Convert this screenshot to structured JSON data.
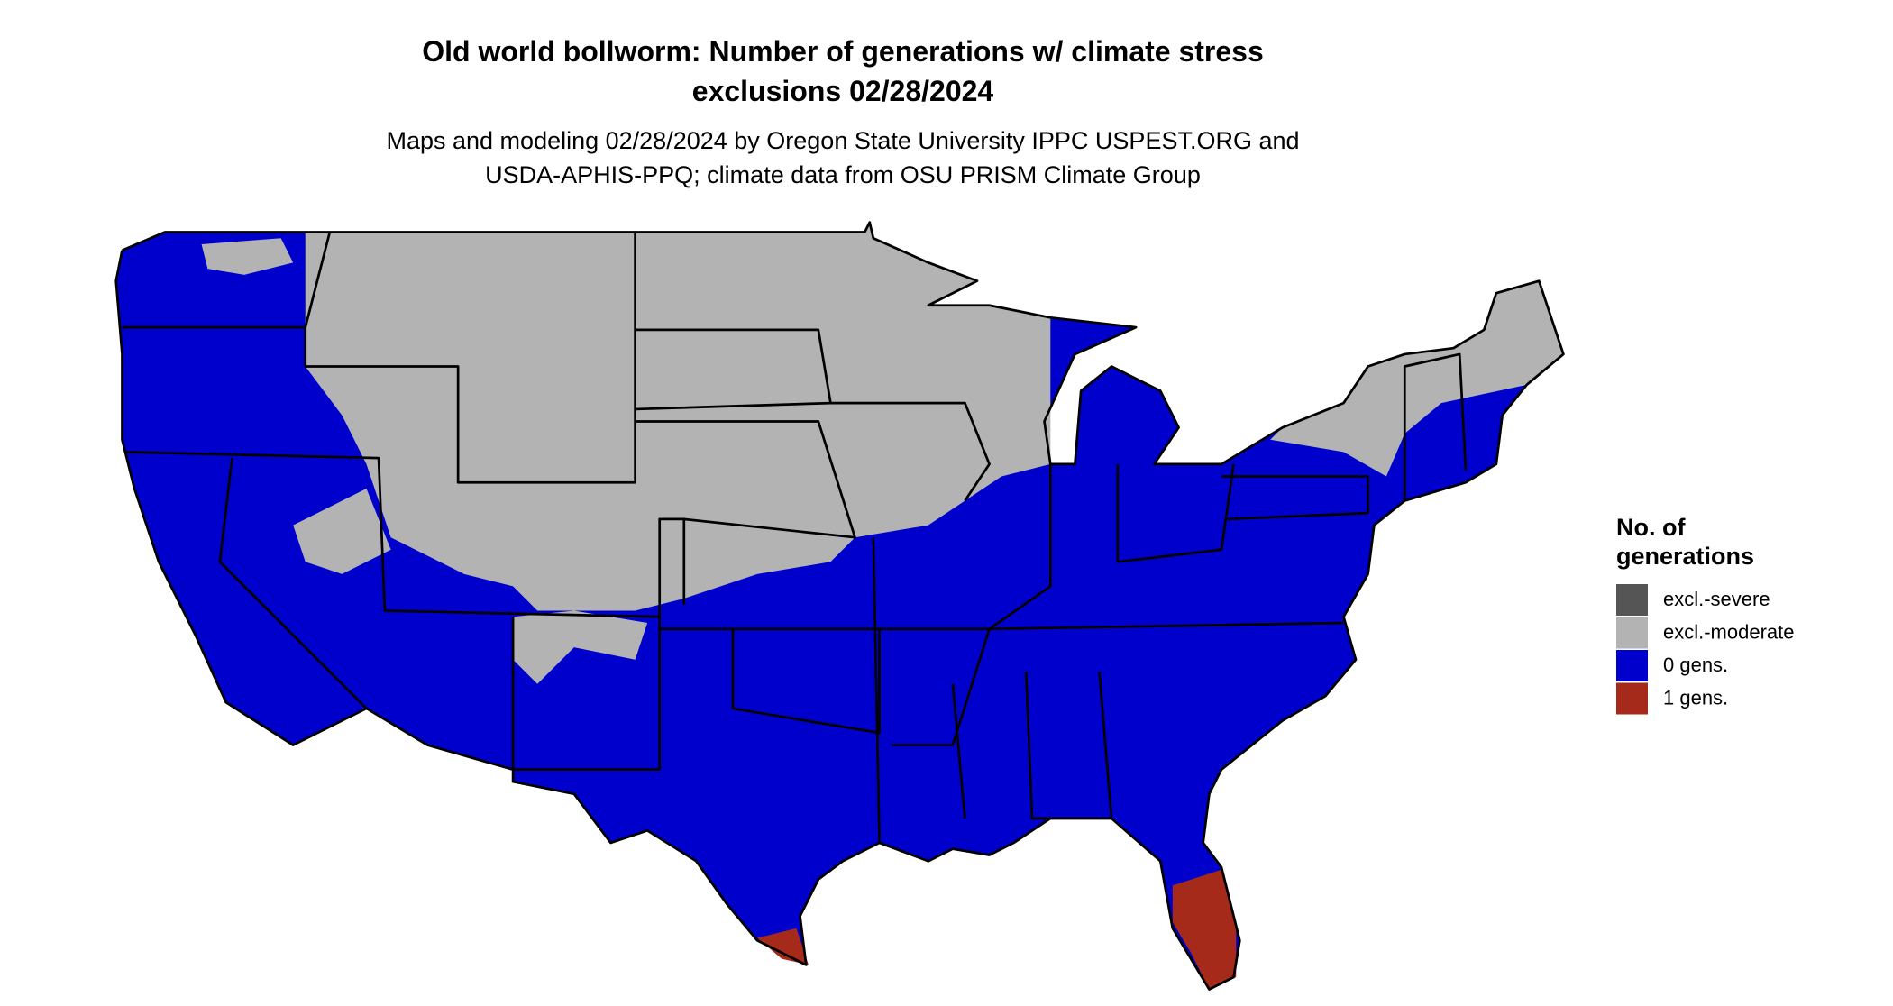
{
  "header": {
    "title": [
      "Old world bollworm: Number of generations w/ climate stress",
      "exclusions 02/28/2024"
    ],
    "subtitle": [
      "Maps and modeling 02/28/2024 by Oregon State University IPPC USPEST.ORG and",
      "USDA-APHIS-PPQ; climate data from OSU PRISM Climate Group"
    ]
  },
  "legend": {
    "title": [
      "No. of",
      "generations"
    ],
    "items": [
      {
        "label": "excl.-severe",
        "color": "#555555"
      },
      {
        "label": "excl.-moderate",
        "color": "#b3b3b3"
      },
      {
        "label": "0 gens.",
        "color": "#0000cc"
      },
      {
        "label": "1 gens.",
        "color": "#a52a1a"
      }
    ]
  }
}
